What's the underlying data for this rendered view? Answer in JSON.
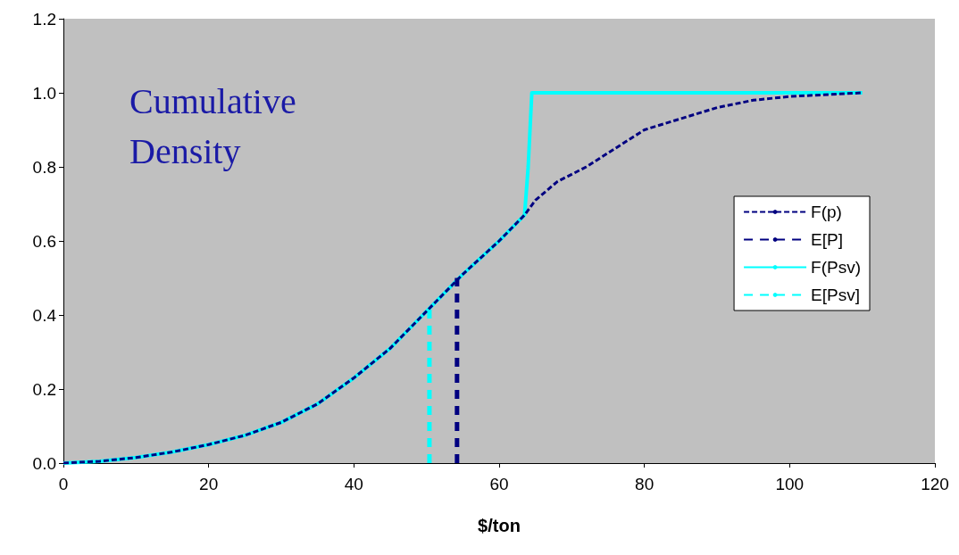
{
  "chart_data": {
    "type": "line",
    "title": "Cumulative Density",
    "xlabel": "$/ton",
    "xlim": [
      0,
      120
    ],
    "xticks": [
      0,
      20,
      40,
      60,
      80,
      100,
      120
    ],
    "ylim": [
      0,
      1.2
    ],
    "yticks": [
      {
        "value": 0,
        "label": "0.0"
      },
      {
        "value": 0.2,
        "label": "0.2"
      },
      {
        "value": 0.4,
        "label": "0.4"
      },
      {
        "value": 0.6,
        "label": "0.6"
      },
      {
        "value": 0.8,
        "label": "0.8"
      },
      {
        "value": 1,
        "label": "1.0"
      },
      {
        "value": 1.2,
        "label": "1.2"
      }
    ],
    "grid": false,
    "legend": "right",
    "marker": "none",
    "series": [
      {
        "name": "F(p)",
        "color": "#000080",
        "line_style": "dotted",
        "x": [
          0,
          5,
          10,
          15,
          20,
          25,
          30,
          35,
          40,
          45,
          50,
          55,
          60,
          63.5,
          65,
          68,
          72,
          76,
          80,
          85,
          90,
          95,
          100,
          110
        ],
        "values": [
          0,
          0.005,
          0.015,
          0.03,
          0.05,
          0.075,
          0.11,
          0.16,
          0.23,
          0.31,
          0.41,
          0.51,
          0.6,
          0.67,
          0.71,
          0.76,
          0.8,
          0.85,
          0.9,
          0.93,
          0.96,
          0.98,
          0.99,
          1.0
        ]
      },
      {
        "name": "E[P]",
        "color": "#000080",
        "line_style": "dashed",
        "x": [
          54.2,
          54.2
        ],
        "values": [
          0,
          0.5
        ]
      },
      {
        "name": "F(Psv)",
        "color": "#00ffff",
        "line_style": "solid",
        "x": [
          0,
          5,
          10,
          15,
          20,
          25,
          30,
          35,
          40,
          45,
          50,
          55,
          60,
          63.5,
          64,
          64.5,
          110
        ],
        "values": [
          0,
          0.005,
          0.015,
          0.03,
          0.05,
          0.075,
          0.11,
          0.16,
          0.23,
          0.31,
          0.41,
          0.51,
          0.6,
          0.67,
          0.8,
          1.0,
          1.0
        ]
      },
      {
        "name": "E[Psv]",
        "color": "#00ffff",
        "line_style": "dashed",
        "x": [
          50.4,
          50.4
        ],
        "values": [
          0,
          0.42
        ]
      }
    ]
  }
}
